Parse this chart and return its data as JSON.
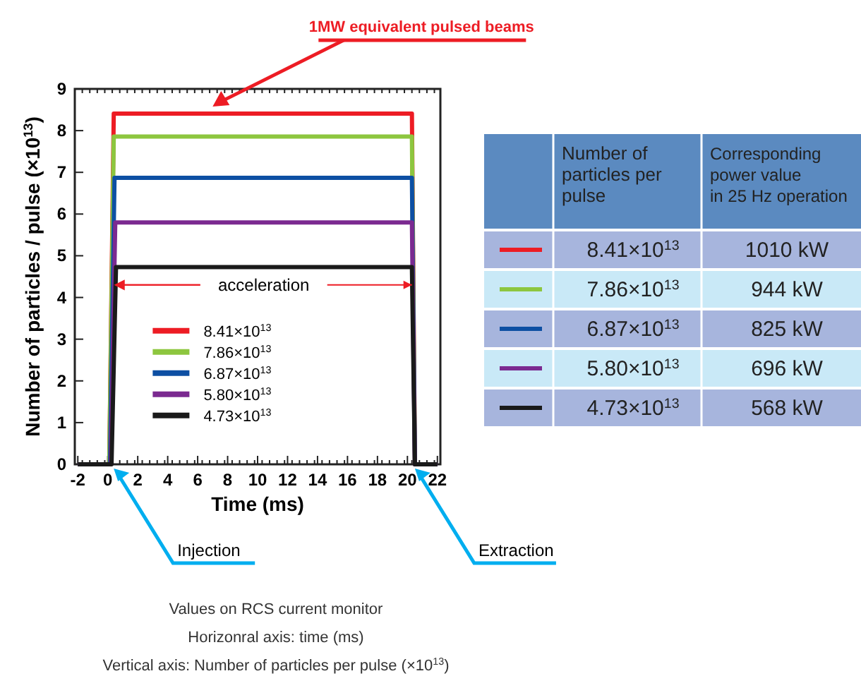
{
  "chart_data": [
    {
      "type": "line",
      "xlabel": "Time (ms)",
      "ylabel": "Number of particles / pulse (×10$^{13}$)",
      "xlim": [
        -2.2,
        22.2
      ],
      "xticks": [
        -2,
        0,
        2,
        4,
        6,
        8,
        10,
        12,
        14,
        16,
        18,
        20,
        22
      ],
      "ylim": [
        0,
        9
      ],
      "yticks": [
        0,
        1,
        2,
        3,
        4,
        5,
        6,
        7,
        8,
        9
      ],
      "grid": false,
      "legend": "bottom",
      "line_style": "solid",
      "marker": "none",
      "series": [
        {
          "name": "8.41×10$^{13}$",
          "color": "#ed1c24",
          "x": [
            -2,
            0.1,
            0.4,
            20.3,
            20.5,
            22
          ],
          "values": [
            0,
            0,
            8.41,
            8.41,
            0,
            0
          ]
        },
        {
          "name": "7.86×10$^{13}$",
          "color": "#8dc63f",
          "x": [
            -2,
            0.1,
            0.4,
            20.3,
            20.5,
            22
          ],
          "values": [
            0,
            0,
            7.86,
            7.86,
            0,
            0
          ]
        },
        {
          "name": "6.87×10$^{13}$",
          "color": "#0d4fa3",
          "x": [
            -2,
            0.15,
            0.45,
            20.3,
            20.5,
            22
          ],
          "values": [
            0,
            0,
            6.87,
            6.87,
            0,
            0
          ]
        },
        {
          "name": "5.80×10$^{13}$",
          "color": "#7b2a90",
          "x": [
            -2,
            0.2,
            0.5,
            20.3,
            20.5,
            22
          ],
          "values": [
            0,
            0,
            5.8,
            5.8,
            0,
            0
          ]
        },
        {
          "name": "4.73×10$^{13}$",
          "color": "#1a1a1a",
          "x": [
            -2,
            0.25,
            0.55,
            20.3,
            20.5,
            22
          ],
          "values": [
            0,
            0,
            4.73,
            4.73,
            0,
            0
          ]
        }
      ],
      "title": "1MW equivalent pulsed beams",
      "annotations": [
        {
          "text": "acceleration",
          "x": 0.52,
          "y": 4.3
        },
        {
          "text": "Injection",
          "x": 0.4,
          "y": 0
        },
        {
          "text": "Extraction",
          "x": 20.5,
          "y": 0
        },
        "Values on RCS current monitor",
        "Horizonral axis: time (ms)",
        "Vertical axis: Number of particles per pulse (×10$^{13}$)"
      ]
    },
    {
      "type": "other",
      "annotations": [
        "Number of\nparticles per\npulse",
        "Corresponding\npower value\nin 25 Hz operation"
      ],
      "categories": [
        "8.41×10$^{13}$",
        "7.86×10$^{13}$",
        "6.87×10$^{13}$",
        "5.80×10$^{13}$",
        "4.73×10$^{13}$"
      ],
      "value_labels": [
        "1010 kW",
        "944 kW",
        "825 kW",
        "696 kW",
        "568 kW"
      ]
    }
  ]
}
